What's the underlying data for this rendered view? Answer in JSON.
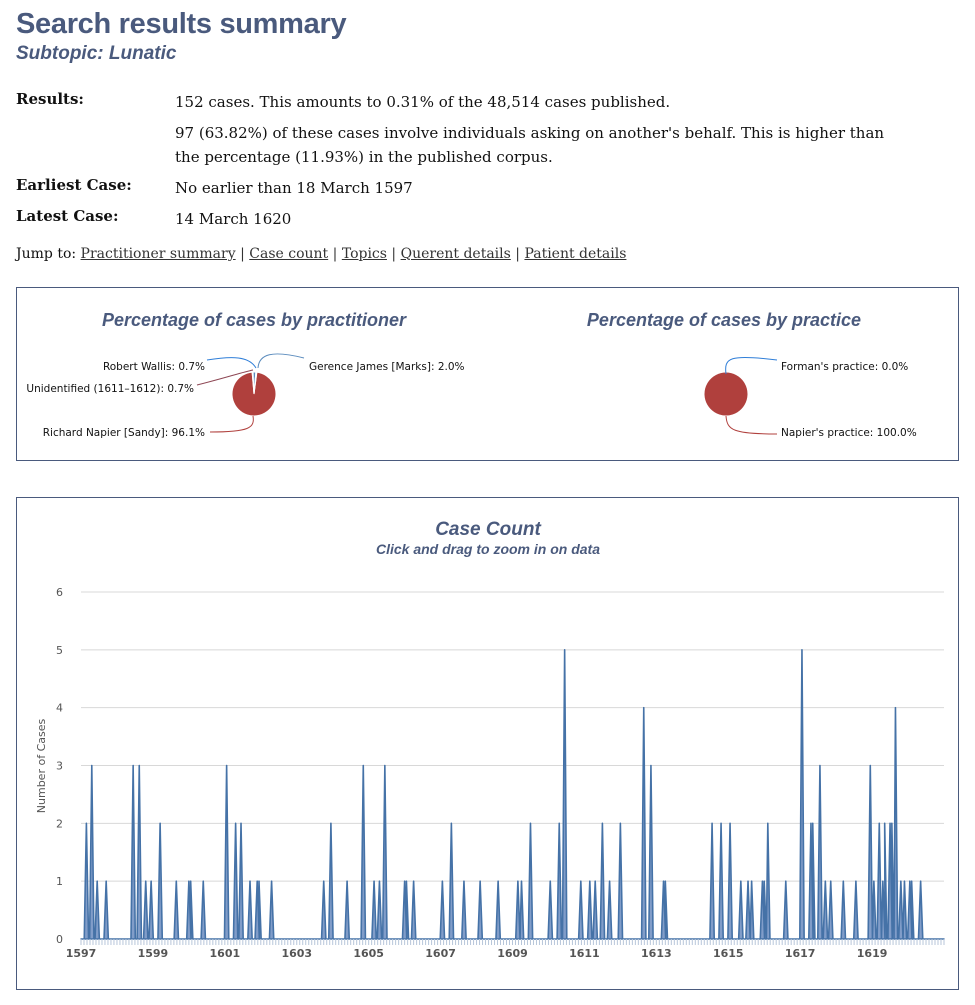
{
  "header": {
    "title": "Search results summary",
    "subtitle": "Subtopic: Lunatic"
  },
  "summary": {
    "results_label": "Results:",
    "results_text": "152 cases. This amounts to 0.31% of the 48,514 cases published.",
    "behalf_text": "97 (63.82%) of these cases involve individuals asking on another's behalf. This is higher than the percentage (11.93%) in the published corpus.",
    "earliest_label": "Earliest Case:",
    "earliest_value": "No earlier than 18 March 1597",
    "latest_label": "Latest Case:",
    "latest_value": "14 March 1620"
  },
  "jump": {
    "prefix": "Jump to:",
    "links": [
      "Practitioner summary",
      "Case count",
      "Topics",
      "Querent details",
      "Patient details"
    ]
  },
  "colors": {
    "heading": "#4a5a7d",
    "napier": "#b0403d",
    "wallis": "#2f7ed8",
    "james": "#5a8bbd",
    "unidentified": "#8d4653",
    "area_fill": "#6b8cbf",
    "area_line": "#4572a7"
  },
  "chart_data": [
    {
      "type": "pie",
      "title": "Percentage of cases by practitioner",
      "slices": [
        {
          "label": "Robert Wallis: 0.7%",
          "value": 0.7
        },
        {
          "label": "Gerence James [Marks]: 2.0%",
          "value": 2.0
        },
        {
          "label": "Unidentified (1611–1612): 0.7%",
          "value": 0.7
        },
        {
          "label": "Richard Napier [Sandy]: 96.1%",
          "value": 96.1
        }
      ]
    },
    {
      "type": "pie",
      "title": "Percentage of cases by practice",
      "slices": [
        {
          "label": "Forman's practice: 0.0%",
          "value": 0.0
        },
        {
          "label": "Napier's practice: 100.0%",
          "value": 100.0
        }
      ]
    },
    {
      "type": "area",
      "title": "Case Count",
      "subtitle": "Click and drag to zoom in on data",
      "ylabel": "Number of Cases",
      "xlabel": "",
      "ylim": [
        0,
        6
      ],
      "yticks": [
        0,
        1,
        2,
        3,
        4,
        5,
        6
      ],
      "xlim": [
        1597.0,
        1621.0
      ],
      "xticks": [
        "1597",
        "1599",
        "1601",
        "1603",
        "1605",
        "1607",
        "1609",
        "1611",
        "1613",
        "1615",
        "1617",
        "1619"
      ],
      "grid": true,
      "points": [
        [
          1597.15,
          2
        ],
        [
          1597.3,
          3
        ],
        [
          1597.45,
          1
        ],
        [
          1597.7,
          1
        ],
        [
          1598.45,
          3
        ],
        [
          1598.62,
          3
        ],
        [
          1598.8,
          1
        ],
        [
          1598.95,
          1
        ],
        [
          1599.2,
          2
        ],
        [
          1599.65,
          1
        ],
        [
          1600.0,
          1
        ],
        [
          1600.05,
          1
        ],
        [
          1600.4,
          1
        ],
        [
          1601.05,
          3
        ],
        [
          1601.3,
          2
        ],
        [
          1601.45,
          2
        ],
        [
          1601.7,
          1
        ],
        [
          1601.9,
          1
        ],
        [
          1601.95,
          1
        ],
        [
          1602.3,
          1
        ],
        [
          1603.75,
          1
        ],
        [
          1603.95,
          2
        ],
        [
          1604.4,
          1
        ],
        [
          1604.85,
          3
        ],
        [
          1605.15,
          1
        ],
        [
          1605.3,
          1
        ],
        [
          1605.45,
          3
        ],
        [
          1606.0,
          1
        ],
        [
          1606.05,
          1
        ],
        [
          1606.25,
          1
        ],
        [
          1607.05,
          1
        ],
        [
          1607.3,
          2
        ],
        [
          1607.65,
          1
        ],
        [
          1608.1,
          1
        ],
        [
          1608.6,
          1
        ],
        [
          1609.15,
          1
        ],
        [
          1609.25,
          1
        ],
        [
          1609.5,
          2
        ],
        [
          1610.05,
          1
        ],
        [
          1610.3,
          2
        ],
        [
          1610.45,
          5
        ],
        [
          1610.9,
          1
        ],
        [
          1611.15,
          1
        ],
        [
          1611.3,
          1
        ],
        [
          1611.5,
          2
        ],
        [
          1611.7,
          1
        ],
        [
          1612.0,
          2
        ],
        [
          1612.65,
          4
        ],
        [
          1612.85,
          3
        ],
        [
          1613.2,
          1
        ],
        [
          1613.25,
          1
        ],
        [
          1614.55,
          2
        ],
        [
          1614.8,
          2
        ],
        [
          1615.05,
          2
        ],
        [
          1615.35,
          1
        ],
        [
          1615.55,
          1
        ],
        [
          1615.65,
          1
        ],
        [
          1615.95,
          1
        ],
        [
          1616.0,
          1
        ],
        [
          1616.1,
          2
        ],
        [
          1616.6,
          1
        ],
        [
          1617.05,
          5
        ],
        [
          1617.3,
          2
        ],
        [
          1617.35,
          2
        ],
        [
          1617.55,
          3
        ],
        [
          1617.7,
          1
        ],
        [
          1617.85,
          1
        ],
        [
          1618.2,
          1
        ],
        [
          1618.55,
          1
        ],
        [
          1618.95,
          3
        ],
        [
          1619.05,
          1
        ],
        [
          1619.2,
          2
        ],
        [
          1619.3,
          1
        ],
        [
          1619.35,
          2
        ],
        [
          1619.5,
          2
        ],
        [
          1619.55,
          2
        ],
        [
          1619.65,
          4
        ],
        [
          1619.8,
          1
        ],
        [
          1619.9,
          1
        ],
        [
          1620.05,
          1
        ],
        [
          1620.1,
          1
        ],
        [
          1620.35,
          1
        ]
      ]
    }
  ]
}
